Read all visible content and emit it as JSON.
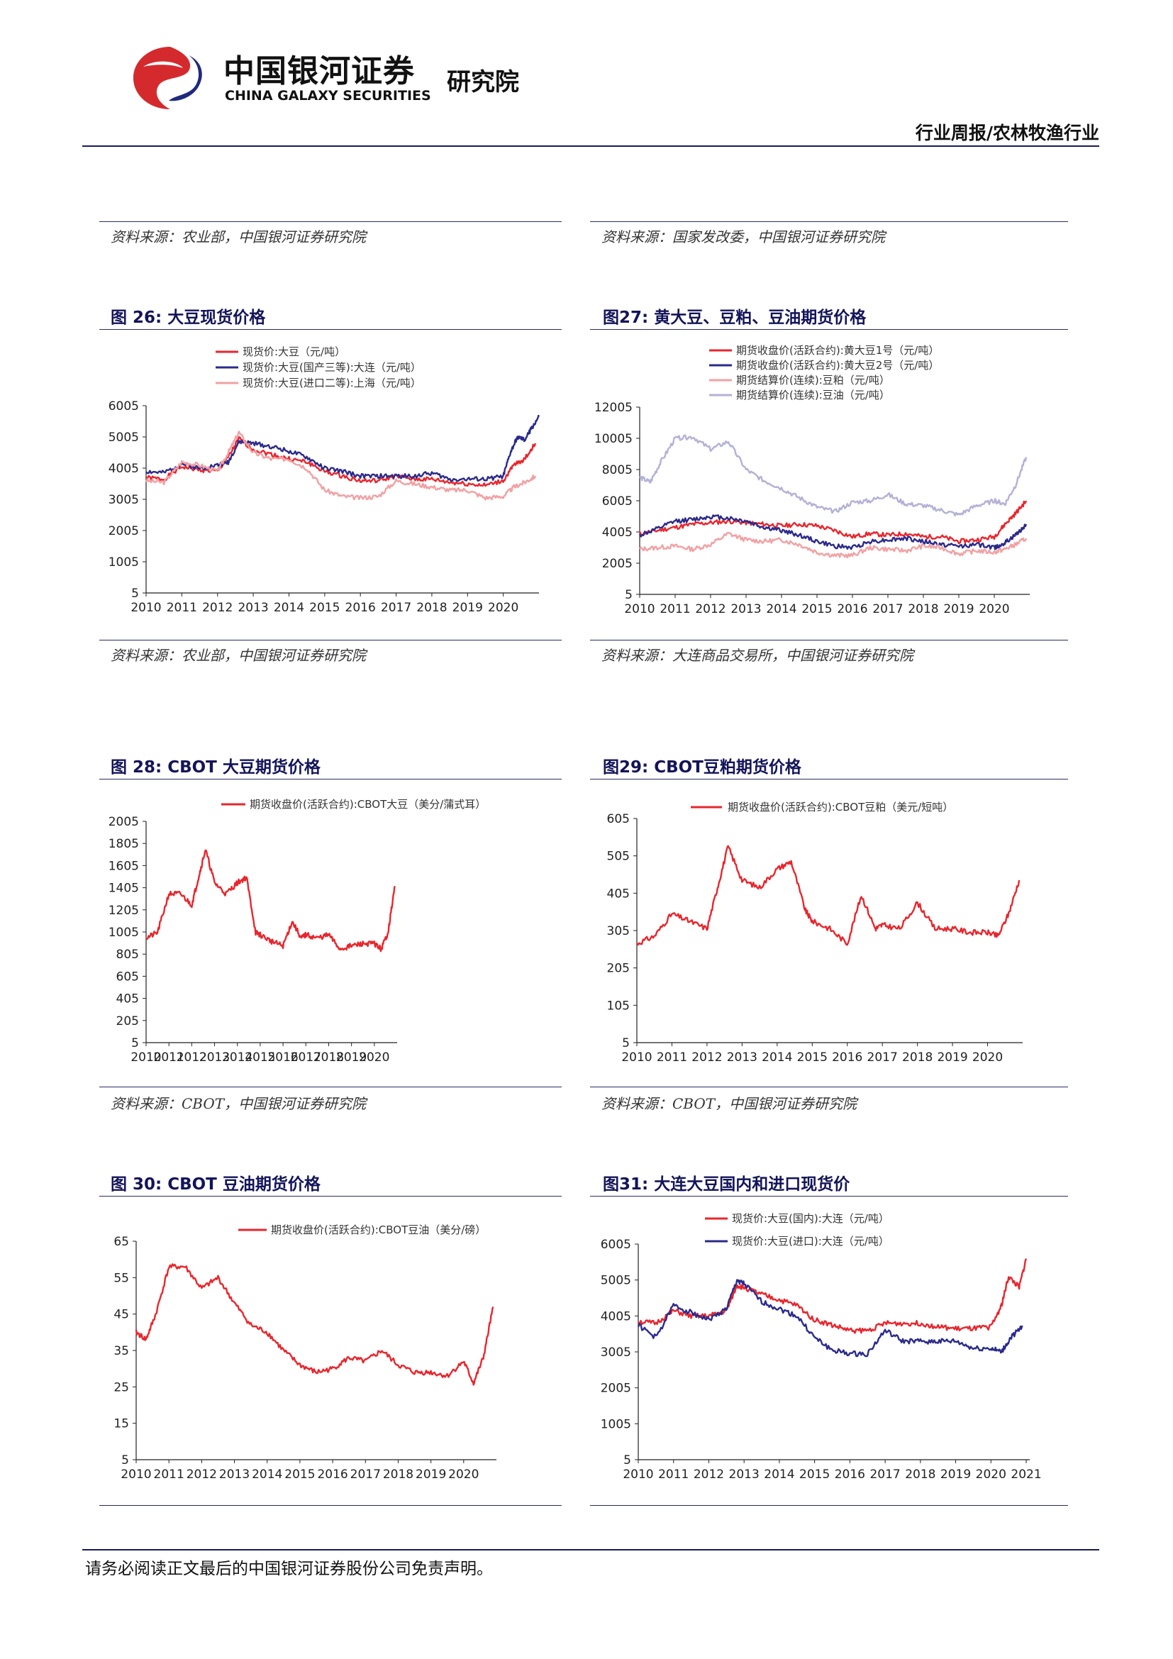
{
  "header": {
    "logo_cn": "中国银河证券",
    "logo_en": "CHINA GALAXY SECURITIES",
    "logo_suffix": "研究院",
    "report_type": "行业周报/农林牧渔行业"
  },
  "top_sources": {
    "left": "资料来源：农业部，中国银河证券研究院",
    "right": "资料来源：国家发改委，中国银河证券研究院"
  },
  "figures": {
    "fig26": {
      "title": "图 26:  大豆现货价格",
      "source": "资料来源：农业部，中国银河证券研究院",
      "legend": [
        "现货价:大豆（元/吨）",
        "现货价:大豆(国产三等):大连（元/吨）",
        "现货价:大豆(进口二等):上海（元/吨）"
      ]
    },
    "fig27": {
      "title": "图27:  黄大豆、豆粕、豆油期货价格",
      "source": "资料来源：大连商品交易所，中国银河证券研究院",
      "legend": [
        "期货收盘价(活跃合约):黄大豆1号（元/吨）",
        "期货收盘价(活跃合约):黄大豆2号（元/吨）",
        "期货结算价(连续):豆粕（元/吨）",
        "期货结算价(连续):豆油（元/吨）"
      ]
    },
    "fig28": {
      "title": "图 28:  CBOT 大豆期货价格",
      "source": "资料来源：CBOT，中国银河证券研究院",
      "legend": [
        "期货收盘价(活跃合约):CBOT大豆（美分/蒲式耳）"
      ]
    },
    "fig29": {
      "title": "图29:  CBOT豆粕期货价格",
      "source": "资料来源：CBOT，中国银河证券研究院",
      "legend": [
        "期货收盘价(活跃合约):CBOT豆粕（美元/短吨）"
      ]
    },
    "fig30": {
      "title": "图 30:  CBOT 豆油期货价格",
      "legend": [
        "期货收盘价(活跃合约):CBOT豆油（美分/磅）"
      ]
    },
    "fig31": {
      "title": "图31:  大连大豆国内和进口现货价",
      "legend": [
        "现货价:大豆(国内):大连（元/吨）",
        "现货价:大豆(进口):大连（元/吨）"
      ]
    }
  },
  "footer": {
    "disclaimer": "请务必阅读正文最后的中国银河证券股份公司免责声明。"
  },
  "colors": {
    "red": "#e8262d",
    "navy": "#2b2a8c",
    "pink": "#f2a0a3",
    "lavender": "#b4b0d6"
  },
  "chart_data": [
    {
      "id": "fig26",
      "type": "line",
      "title": "大豆现货价格",
      "categories": [
        "2010",
        "2011",
        "2012",
        "2013",
        "2014",
        "2015",
        "2016",
        "2017",
        "2018",
        "2019",
        "2020"
      ],
      "x_range": [
        2010,
        2021
      ],
      "ylim": [
        5,
        6005
      ],
      "yticks": [
        "6005",
        "5005",
        "4005",
        "3005",
        "2005",
        "1005",
        "5"
      ],
      "series": [
        {
          "name": "现货价:大豆（元/吨）",
          "color": "#e8262d",
          "x": [
            2010,
            2010.5,
            2011,
            2011.5,
            2012,
            2012.3,
            2012.6,
            2013,
            2013.5,
            2014,
            2014.5,
            2015,
            2015.5,
            2016,
            2016.5,
            2017,
            2017.5,
            2018,
            2018.5,
            2019,
            2019.5,
            2020,
            2020.3,
            2020.6,
            2020.9
          ],
          "values": [
            3700,
            3650,
            4050,
            3950,
            3900,
            4350,
            4950,
            4600,
            4450,
            4300,
            4200,
            3900,
            3750,
            3600,
            3600,
            3750,
            3650,
            3650,
            3550,
            3500,
            3450,
            3600,
            4100,
            4300,
            4800
          ]
        },
        {
          "name": "现货价:大豆(国产三等):大连（元/吨）",
          "color": "#2b2a8c",
          "x": [
            2010,
            2010.5,
            2011,
            2011.5,
            2012,
            2012.3,
            2012.6,
            2013,
            2013.5,
            2014,
            2014.5,
            2015,
            2015.5,
            2016,
            2016.5,
            2017,
            2017.5,
            2018,
            2018.5,
            2019,
            2019.5,
            2020,
            2020.2,
            2020.4,
            2020.6,
            2020.8,
            2021
          ],
          "values": [
            3900,
            3850,
            4150,
            4000,
            4100,
            4200,
            4850,
            4800,
            4700,
            4550,
            4350,
            4000,
            3900,
            3750,
            3750,
            3750,
            3750,
            3850,
            3650,
            3650,
            3650,
            3750,
            4500,
            5000,
            4900,
            5300,
            5650
          ]
        },
        {
          "name": "现货价:大豆(进口二等):上海（元/吨）",
          "color": "#f2a0a3",
          "x": [
            2010,
            2010.5,
            2011,
            2011.5,
            2012,
            2012.3,
            2012.6,
            2013,
            2013.5,
            2014,
            2014.5,
            2015,
            2015.5,
            2016,
            2016.5,
            2017,
            2017.5,
            2018,
            2018.5,
            2019,
            2019.5,
            2020,
            2020.3,
            2020.6,
            2020.9
          ],
          "values": [
            3600,
            3550,
            4200,
            4100,
            3900,
            4500,
            5150,
            4500,
            4300,
            4300,
            4000,
            3300,
            3100,
            3050,
            3100,
            3600,
            3500,
            3400,
            3300,
            3300,
            3050,
            3100,
            3400,
            3550,
            3750
          ]
        }
      ]
    },
    {
      "id": "fig27",
      "type": "line",
      "title": "黄大豆、豆粕、豆油期货价格",
      "categories": [
        "2010",
        "2011",
        "2012",
        "2013",
        "2014",
        "2015",
        "2016",
        "2017",
        "2018",
        "2019",
        "2020"
      ],
      "x_range": [
        2010,
        2021
      ],
      "ylim": [
        5,
        12005
      ],
      "yticks": [
        "12005",
        "10005",
        "8005",
        "6005",
        "4005",
        "2005",
        "5"
      ],
      "series": [
        {
          "name": "期货收盘价(活跃合约):黄大豆1号（元/吨）",
          "color": "#e8262d",
          "x": [
            2010,
            2010.5,
            2011,
            2011.5,
            2012,
            2012.5,
            2013,
            2013.5,
            2014,
            2014.5,
            2015,
            2015.5,
            2016,
            2016.5,
            2017,
            2017.5,
            2018,
            2018.5,
            2019,
            2019.5,
            2020,
            2020.3,
            2020.6,
            2020.9
          ],
          "values": [
            3900,
            4100,
            4300,
            4500,
            4600,
            4700,
            4600,
            4500,
            4400,
            4500,
            4400,
            4100,
            3700,
            3900,
            3800,
            3900,
            3700,
            3700,
            3400,
            3500,
            3700,
            4500,
            5200,
            6000
          ]
        },
        {
          "name": "期货收盘价(活跃合约):黄大豆2号（元/吨）",
          "color": "#2b2a8c",
          "x": [
            2010,
            2010.5,
            2011,
            2011.5,
            2012,
            2012.5,
            2013,
            2013.5,
            2014,
            2014.5,
            2015,
            2015.5,
            2016,
            2016.5,
            2017,
            2017.5,
            2018,
            2018.5,
            2019,
            2019.5,
            2020,
            2020.3,
            2020.6,
            2020.9
          ],
          "values": [
            3800,
            4200,
            4700,
            4800,
            5000,
            4900,
            4700,
            4300,
            4100,
            3800,
            3400,
            3100,
            3000,
            3400,
            3500,
            3600,
            3400,
            3200,
            3100,
            3200,
            3000,
            3300,
            3800,
            4500
          ]
        },
        {
          "name": "期货结算价(连续):豆粕（元/吨）",
          "color": "#f2a0a3",
          "x": [
            2010,
            2010.5,
            2011,
            2011.5,
            2012,
            2012.5,
            2013,
            2013.5,
            2014,
            2014.5,
            2015,
            2015.5,
            2016,
            2016.5,
            2017,
            2017.5,
            2018,
            2018.5,
            2019,
            2019.5,
            2020,
            2020.3,
            2020.6,
            2020.9
          ],
          "values": [
            2900,
            3000,
            3100,
            2900,
            3200,
            3900,
            3500,
            3400,
            3500,
            3200,
            2700,
            2500,
            2500,
            3000,
            2900,
            2800,
            3100,
            3000,
            2600,
            2800,
            2700,
            2900,
            3200,
            3600
          ]
        },
        {
          "name": "期货结算价(连续):豆油（元/吨）",
          "color": "#b4b0d6",
          "x": [
            2010,
            2010.3,
            2010.6,
            2011,
            2011.5,
            2012,
            2012.5,
            2013,
            2013.5,
            2014,
            2014.5,
            2015,
            2015.5,
            2016,
            2016.5,
            2017,
            2017.5,
            2018,
            2018.5,
            2019,
            2019.5,
            2020,
            2020.3,
            2020.6,
            2020.9
          ],
          "values": [
            7500,
            7200,
            8500,
            10000,
            10100,
            9300,
            9800,
            8000,
            7300,
            6800,
            6200,
            5600,
            5300,
            5900,
            6000,
            6400,
            5800,
            5700,
            5400,
            5100,
            5700,
            6000,
            5800,
            7000,
            8800
          ]
        }
      ]
    },
    {
      "id": "fig28",
      "type": "line",
      "title": "CBOT 大豆期货价格",
      "categories": [
        "2010",
        "2011",
        "2012",
        "2013",
        "2014",
        "2015",
        "2016",
        "2017",
        "2018",
        "2019",
        "2020"
      ],
      "x_range": [
        2010,
        2021
      ],
      "ylim": [
        5,
        2005
      ],
      "yticks": [
        "2005",
        "1805",
        "1605",
        "1405",
        "1205",
        "1005",
        "805",
        "605",
        "405",
        "205",
        "5"
      ],
      "series": [
        {
          "name": "期货收盘价(活跃合约):CBOT大豆（美分/蒲式耳）",
          "color": "#e8262d",
          "x": [
            2010,
            2010.5,
            2011,
            2011.5,
            2012,
            2012.3,
            2012.6,
            2013,
            2013.5,
            2014,
            2014.4,
            2014.8,
            2015,
            2015.5,
            2016,
            2016.4,
            2016.8,
            2017,
            2017.5,
            2018,
            2018.5,
            2019,
            2019.5,
            2020,
            2020.3,
            2020.6,
            2020.9
          ],
          "values": [
            950,
            1000,
            1350,
            1350,
            1250,
            1500,
            1750,
            1450,
            1350,
            1450,
            1500,
            1000,
            980,
            920,
            880,
            1100,
            950,
            980,
            950,
            980,
            850,
            880,
            900,
            900,
            850,
            1000,
            1420
          ]
        }
      ]
    },
    {
      "id": "fig29",
      "type": "line",
      "title": "CBOT豆粕期货价格",
      "categories": [
        "2010",
        "2011",
        "2012",
        "2013",
        "2014",
        "2015",
        "2016",
        "2017",
        "2018",
        "2019",
        "2020"
      ],
      "x_range": [
        2010,
        2021
      ],
      "ylim": [
        5,
        605
      ],
      "yticks": [
        "605",
        "505",
        "405",
        "305",
        "205",
        "105",
        "5"
      ],
      "series": [
        {
          "name": "期货收盘价(活跃合约):CBOT豆粕（美元/短吨）",
          "color": "#e8262d",
          "x": [
            2010,
            2010.5,
            2011,
            2011.5,
            2012,
            2012.3,
            2012.6,
            2013,
            2013.5,
            2014,
            2014.4,
            2014.8,
            2015,
            2015.5,
            2016,
            2016.4,
            2016.8,
            2017,
            2017.5,
            2018,
            2018.5,
            2019,
            2019.5,
            2020,
            2020.3,
            2020.6,
            2020.9
          ],
          "values": [
            270,
            290,
            350,
            330,
            310,
            420,
            530,
            440,
            420,
            470,
            490,
            360,
            330,
            310,
            270,
            400,
            310,
            320,
            310,
            380,
            310,
            310,
            300,
            300,
            290,
            350,
            440
          ]
        }
      ]
    },
    {
      "id": "fig30",
      "type": "line",
      "title": "CBOT 豆油期货价格",
      "categories": [
        "2010",
        "2011",
        "2012",
        "2013",
        "2014",
        "2015",
        "2016",
        "2017",
        "2018",
        "2019",
        "2020"
      ],
      "x_range": [
        2010,
        2021
      ],
      "ylim": [
        5,
        65
      ],
      "yticks": [
        "65",
        "55",
        "45",
        "35",
        "25",
        "15",
        "5"
      ],
      "series": [
        {
          "name": "期货收盘价(活跃合约):CBOT豆油（美分/磅）",
          "color": "#e8262d",
          "x": [
            2010,
            2010.3,
            2010.6,
            2011,
            2011.5,
            2012,
            2012.5,
            2013,
            2013.5,
            2014,
            2014.5,
            2015,
            2015.5,
            2016,
            2016.5,
            2017,
            2017.5,
            2018,
            2018.5,
            2019,
            2019.5,
            2020,
            2020.3,
            2020.6,
            2020.9
          ],
          "values": [
            40,
            38,
            45,
            58,
            58,
            52,
            55,
            48,
            42,
            40,
            35,
            31,
            29,
            30,
            33,
            32,
            35,
            31,
            29,
            29,
            28,
            32,
            26,
            33,
            47
          ]
        }
      ]
    },
    {
      "id": "fig31",
      "type": "line",
      "title": "大连大豆国内和进口现货价",
      "categories": [
        "2010",
        "2011",
        "2012",
        "2013",
        "2014",
        "2015",
        "2016",
        "2017",
        "2018",
        "2019",
        "2020",
        "2021"
      ],
      "x_range": [
        2010,
        2021.1
      ],
      "ylim": [
        5,
        6005
      ],
      "yticks": [
        "6005",
        "5005",
        "4005",
        "3005",
        "2005",
        "1005",
        "5"
      ],
      "series": [
        {
          "name": "现货价:大豆(国内):大连（元/吨）",
          "color": "#e8262d",
          "x": [
            2010,
            2010.5,
            2011,
            2011.5,
            2012,
            2012.5,
            2012.8,
            2013,
            2013.5,
            2014,
            2014.5,
            2015,
            2015.5,
            2016,
            2016.5,
            2017,
            2017.5,
            2018,
            2018.5,
            2019,
            2019.5,
            2020,
            2020.3,
            2020.5,
            2020.8,
            2021
          ],
          "values": [
            3850,
            3800,
            4150,
            4000,
            4000,
            4150,
            4850,
            4800,
            4600,
            4450,
            4300,
            3900,
            3750,
            3600,
            3600,
            3800,
            3800,
            3800,
            3700,
            3650,
            3650,
            3700,
            4300,
            5100,
            4800,
            5600
          ]
        },
        {
          "name": "现货价:大豆(进口):大连（元/吨）",
          "color": "#2b2a8c",
          "x": [
            2010,
            2010.5,
            2011,
            2011.5,
            2012,
            2012.5,
            2012.8,
            2013,
            2013.5,
            2014,
            2014.5,
            2015,
            2015.5,
            2016,
            2016.5,
            2017,
            2017.5,
            2018,
            2018.5,
            2019,
            2019.5,
            2020,
            2020.3,
            2020.6,
            2020.9
          ],
          "values": [
            3750,
            3400,
            4300,
            4100,
            3900,
            4200,
            5000,
            4900,
            4400,
            4200,
            4000,
            3400,
            3050,
            2950,
            2950,
            3600,
            3300,
            3300,
            3300,
            3300,
            3100,
            3100,
            3000,
            3450,
            3700
          ]
        }
      ]
    }
  ]
}
